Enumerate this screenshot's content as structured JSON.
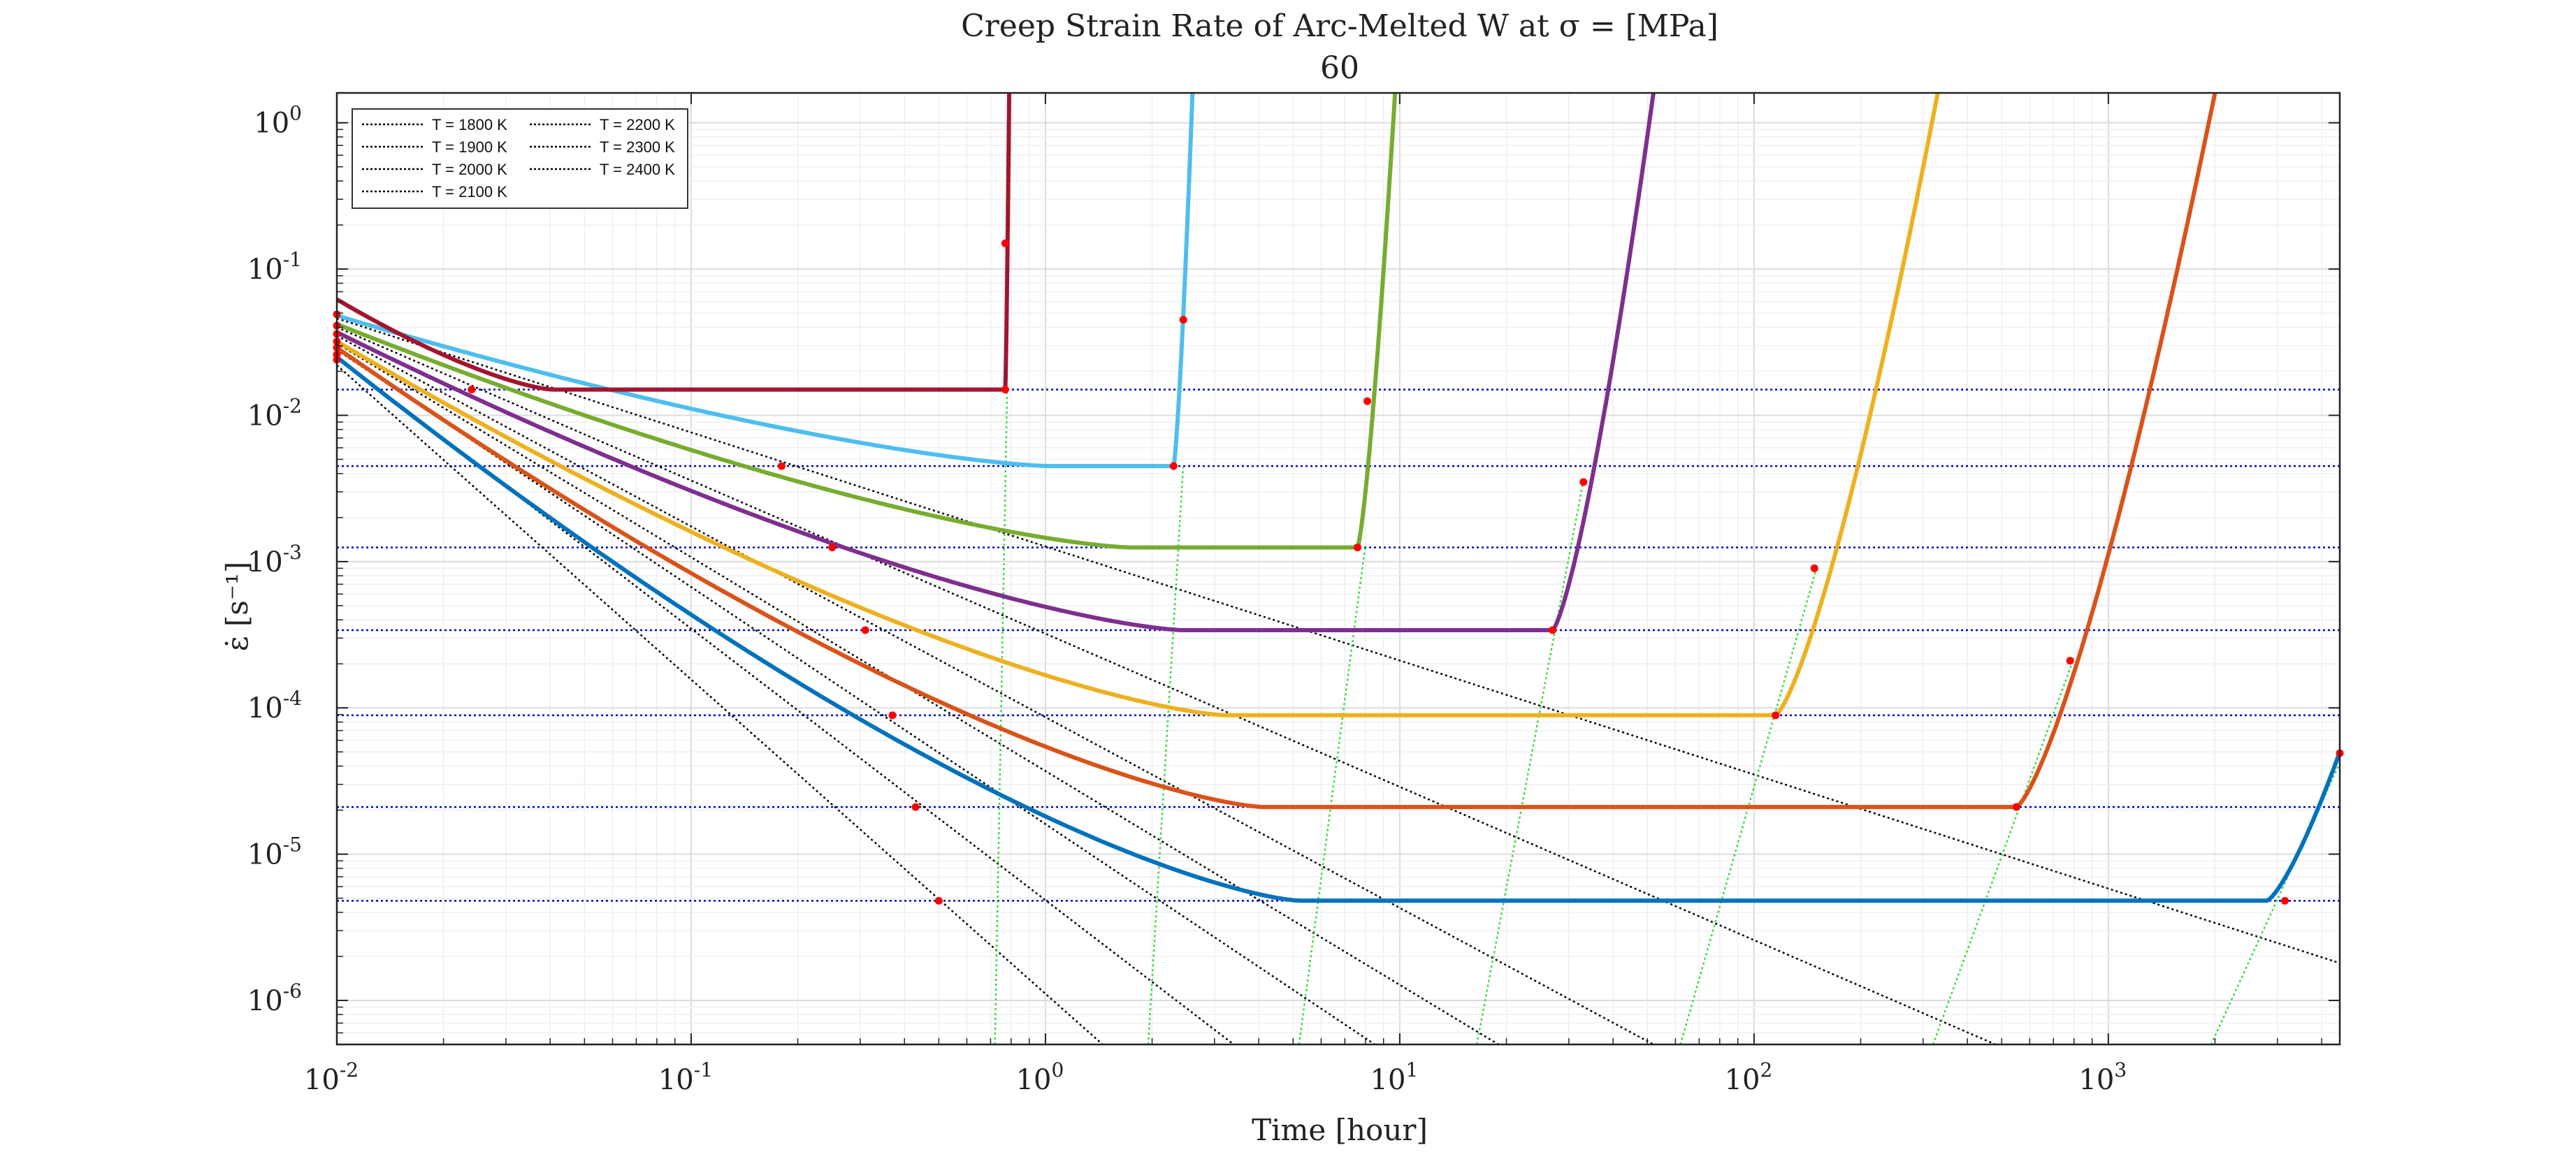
{
  "chart_data": {
    "type": "line",
    "title": "Creep Strain Rate of Arc-Melted W at σ = [MPa]",
    "subtitle": "60",
    "xlabel": "Time [hour]",
    "ylabel": "ε̇ [s⁻¹]",
    "xscale": "log",
    "yscale": "log",
    "xlim": [
      0.01,
      4500
    ],
    "ylim": [
      5e-07,
      1.6
    ],
    "grid": true,
    "minor_grid": true,
    "legend_placement": "top-left",
    "x_ticks": [
      {
        "value": 0.01,
        "base": "10",
        "exp": "-2"
      },
      {
        "value": 0.1,
        "base": "10",
        "exp": "-1"
      },
      {
        "value": 1,
        "base": "10",
        "exp": "0"
      },
      {
        "value": 10,
        "base": "10",
        "exp": "1"
      },
      {
        "value": 100,
        "base": "10",
        "exp": "2"
      },
      {
        "value": 1000,
        "base": "10",
        "exp": "3"
      }
    ],
    "y_ticks": [
      {
        "value": 1e-06,
        "base": "10",
        "exp": "-6"
      },
      {
        "value": 1e-05,
        "base": "10",
        "exp": "-5"
      },
      {
        "value": 0.0001,
        "base": "10",
        "exp": "-4"
      },
      {
        "value": 0.001,
        "base": "10",
        "exp": "-3"
      },
      {
        "value": 0.01,
        "base": "10",
        "exp": "-2"
      },
      {
        "value": 0.1,
        "base": "10",
        "exp": "-1"
      },
      {
        "value": 1,
        "base": "10",
        "exp": "0"
      }
    ],
    "legend": [
      "T = 1800 K",
      "T = 1900 K",
      "T = 2000 K",
      "T = 2100 K",
      "T = 2200 K",
      "T = 2300 K",
      "T = 2400 K"
    ],
    "series": [
      {
        "name": "T = 1800 K",
        "color": "#0072BD",
        "start": 0.025,
        "steady_rate": 4.8e-06,
        "t_steady": 0.5,
        "t_tertiary": 2800,
        "t_end": 4500,
        "end_rate": 5e-05
      },
      {
        "name": "T = 1900 K",
        "color": "#D95319",
        "start": 0.029,
        "steady_rate": 2.1e-05,
        "t_steady": 0.43,
        "t_tertiary": 550,
        "t_end": 2000,
        "end_rate": 1.6
      },
      {
        "name": "T = 2000 K",
        "color": "#EDB120",
        "start": 0.032,
        "steady_rate": 8.9e-05,
        "t_steady": 0.37,
        "t_tertiary": 115,
        "t_end": 330,
        "end_rate": 1.6
      },
      {
        "name": "T = 2100 K",
        "color": "#7E2F8E",
        "start": 0.037,
        "steady_rate": 0.00034,
        "t_steady": 0.31,
        "t_tertiary": 27,
        "t_end": 52,
        "end_rate": 1.6
      },
      {
        "name": "T = 2200 K",
        "color": "#77AC30",
        "start": 0.042,
        "steady_rate": 0.00125,
        "t_steady": 0.25,
        "t_tertiary": 7.6,
        "t_end": 9.7,
        "end_rate": 1.6
      },
      {
        "name": "T = 2300 K",
        "color": "#4DBEEE",
        "start": 0.048,
        "steady_rate": 0.0045,
        "t_steady": 0.18,
        "t_tertiary": 2.3,
        "t_end": 2.6,
        "end_rate": 1.6
      },
      {
        "name": "T = 2400 K",
        "color": "#A2142F",
        "start": 0.062,
        "steady_rate": 0.015,
        "t_steady": 0.024,
        "t_tertiary": 0.77,
        "t_end": 0.79,
        "end_rate": 1.6
      }
    ],
    "steady_state_rates": [
      4.8e-06,
      2.1e-05,
      8.9e-05,
      0.00034,
      0.00125,
      0.0045,
      0.015
    ],
    "black_dotted_lines": [
      {
        "x1": 0.01,
        "y1": 0.022,
        "x2": 1.45,
        "y2": 5e-07
      },
      {
        "x1": 0.01,
        "y1": 0.025,
        "x2": 3.4,
        "y2": 5e-07
      },
      {
        "x1": 0.01,
        "y1": 0.028,
        "x2": 8.5,
        "y2": 5e-07
      },
      {
        "x1": 0.01,
        "y1": 0.031,
        "x2": 19,
        "y2": 5e-07
      },
      {
        "x1": 0.01,
        "y1": 0.035,
        "x2": 52,
        "y2": 5e-07
      },
      {
        "x1": 0.01,
        "y1": 0.04,
        "x2": 480,
        "y2": 5e-07
      },
      {
        "x1": 0.01,
        "y1": 0.046,
        "x2": 4500,
        "y2": 1.8e-06
      }
    ],
    "green_dotted_lines": [
      {
        "x1": 0.72,
        "y1": 5e-07,
        "x2": 0.78,
        "y2": 0.016
      },
      {
        "x1": 1.95,
        "y1": 5e-07,
        "x2": 2.45,
        "y2": 0.0046
      },
      {
        "x1": 5.2,
        "y1": 5e-07,
        "x2": 8.0,
        "y2": 0.0013
      },
      {
        "x1": 16.5,
        "y1": 5e-07,
        "x2": 33,
        "y2": 0.0036
      },
      {
        "x1": 62,
        "y1": 5e-07,
        "x2": 150,
        "y2": 0.0009
      },
      {
        "x1": 320,
        "y1": 5e-07,
        "x2": 800,
        "y2": 0.00022
      },
      {
        "x1": 1950,
        "y1": 5e-07,
        "x2": 4500,
        "y2": 4.2e-05
      }
    ],
    "markers": [
      {
        "x": 0.01,
        "y": 0.049
      },
      {
        "x": 0.01,
        "y": 0.041
      },
      {
        "x": 0.01,
        "y": 0.036
      },
      {
        "x": 0.01,
        "y": 0.032
      },
      {
        "x": 0.01,
        "y": 0.029
      },
      {
        "x": 0.01,
        "y": 0.026
      },
      {
        "x": 0.01,
        "y": 0.024
      },
      {
        "x": 0.024,
        "y": 0.015
      },
      {
        "x": 0.18,
        "y": 0.0045
      },
      {
        "x": 0.25,
        "y": 0.00125
      },
      {
        "x": 0.31,
        "y": 0.00034
      },
      {
        "x": 0.37,
        "y": 8.9e-05
      },
      {
        "x": 0.43,
        "y": 2.1e-05
      },
      {
        "x": 0.5,
        "y": 4.8e-06
      },
      {
        "x": 0.77,
        "y": 0.015
      },
      {
        "x": 0.77,
        "y": 0.15
      },
      {
        "x": 2.3,
        "y": 0.0045
      },
      {
        "x": 2.45,
        "y": 0.045
      },
      {
        "x": 7.6,
        "y": 0.00125
      },
      {
        "x": 8.1,
        "y": 0.0125
      },
      {
        "x": 27,
        "y": 0.00034
      },
      {
        "x": 33,
        "y": 0.0035
      },
      {
        "x": 115,
        "y": 8.9e-05
      },
      {
        "x": 148,
        "y": 0.0009
      },
      {
        "x": 550,
        "y": 2.1e-05
      },
      {
        "x": 780,
        "y": 0.00021
      },
      {
        "x": 3150,
        "y": 4.8e-06
      },
      {
        "x": 4500,
        "y": 4.9e-05
      }
    ]
  }
}
